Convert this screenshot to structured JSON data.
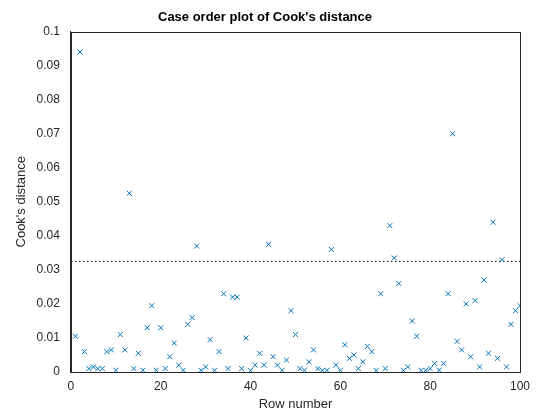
{
  "chart_data": {
    "type": "scatter",
    "title": "Case order plot of Cook's distance",
    "x_label": "Row number",
    "y_label": "Cook's distance",
    "x": [
      1,
      2,
      3,
      4,
      5,
      6,
      7,
      8,
      9,
      10,
      11,
      12,
      13,
      14,
      15,
      16,
      17,
      18,
      19,
      20,
      21,
      22,
      23,
      24,
      25,
      26,
      27,
      28,
      29,
      30,
      31,
      32,
      33,
      34,
      35,
      36,
      37,
      38,
      39,
      40,
      41,
      42,
      43,
      44,
      45,
      46,
      47,
      48,
      49,
      50,
      51,
      52,
      53,
      54,
      55,
      56,
      57,
      58,
      59,
      60,
      61,
      62,
      63,
      64,
      65,
      66,
      67,
      68,
      69,
      70,
      71,
      72,
      73,
      74,
      75,
      76,
      77,
      78,
      79,
      80,
      81,
      82,
      83,
      84,
      85,
      86,
      87,
      88,
      89,
      90,
      91,
      92,
      93,
      94,
      95,
      96,
      97,
      98,
      99,
      100
    ],
    "values": [
      0.0105,
      0.094,
      0.006,
      0.001,
      0.0015,
      0.001,
      0.001,
      0.006,
      0.0065,
      0.0005,
      0.011,
      0.0065,
      0.0525,
      0.001,
      0.0055,
      0.0005,
      0.013,
      0.0195,
      0.0005,
      0.013,
      0.001,
      0.0045,
      0.0085,
      0.002,
      0.0005,
      0.014,
      0.016,
      0.037,
      0.0005,
      0.0015,
      0.0095,
      0.0005,
      0.006,
      0.023,
      0.001,
      0.022,
      0.022,
      0.001,
      0.01,
      0.0005,
      0.002,
      0.0055,
      0.002,
      0.0375,
      0.0045,
      0.002,
      0.0005,
      0.0035,
      0.018,
      0.011,
      0.001,
      0.0005,
      0.003,
      0.0065,
      0.001,
      0.0005,
      0.0005,
      0.036,
      0.002,
      0.0005,
      0.008,
      0.004,
      0.005,
      0.001,
      0.003,
      0.0075,
      0.006,
      0.0005,
      0.023,
      0.001,
      0.043,
      0.0335,
      0.026,
      0.0005,
      0.0015,
      0.015,
      0.0105,
      0.0005,
      0.0005,
      0.001,
      0.0025,
      0.0005,
      0.0025,
      0.023,
      0.07,
      0.009,
      0.0065,
      0.02,
      0.0045,
      0.021,
      0.0015,
      0.027,
      0.0055,
      0.044,
      0.004,
      0.033,
      0.0015,
      0.014,
      0.018,
      0.0195
    ],
    "color": "#0072bd",
    "marker": "x",
    "threshold": 0.0325,
    "line_style": "dotted",
    "xlim": [
      0,
      100
    ],
    "xticks": [
      0,
      20,
      40,
      60,
      80,
      100
    ],
    "ylim": [
      0,
      0.1
    ],
    "yticks": [
      0,
      0.01,
      0.02,
      0.03,
      0.04,
      0.05,
      0.06,
      0.07,
      0.08,
      0.09,
      0.1
    ],
    "grid": false
  }
}
